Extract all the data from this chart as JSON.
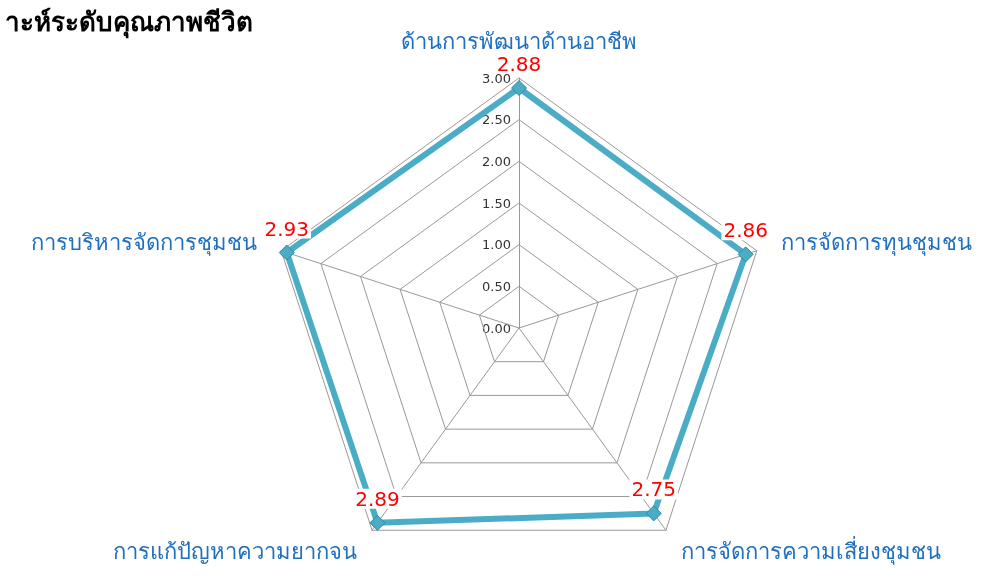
{
  "chart_data": {
    "type": "radar",
    "title": "าะห์ระดับคุณภาพชีวิต",
    "categories": [
      "ด้านการพัฒนาด้านอาชีพ",
      "การจัดการทุนชุมชน",
      "การจัดการความเสี่ยงชุมชน",
      "การแก้ปัญหาความยากจน",
      "การบริหารจัดการชุมชน"
    ],
    "series": [
      {
        "color": "#4bacc6",
        "values": [
          2.88,
          2.86,
          2.75,
          2.89,
          2.93
        ]
      }
    ],
    "ylim": [
      0,
      3
    ],
    "yticks": [
      {
        "value": 0,
        "label": "0.00"
      },
      {
        "value": 0.5,
        "label": "0.50"
      },
      {
        "value": 1,
        "label": "1.00"
      },
      {
        "value": 1.5,
        "label": "1.50"
      },
      {
        "value": 2,
        "label": "2.00"
      },
      {
        "value": 2.5,
        "label": "2.50"
      },
      {
        "value": 3,
        "label": "3.00"
      }
    ],
    "data_labels": true,
    "grid": true,
    "marker": "diamond"
  }
}
